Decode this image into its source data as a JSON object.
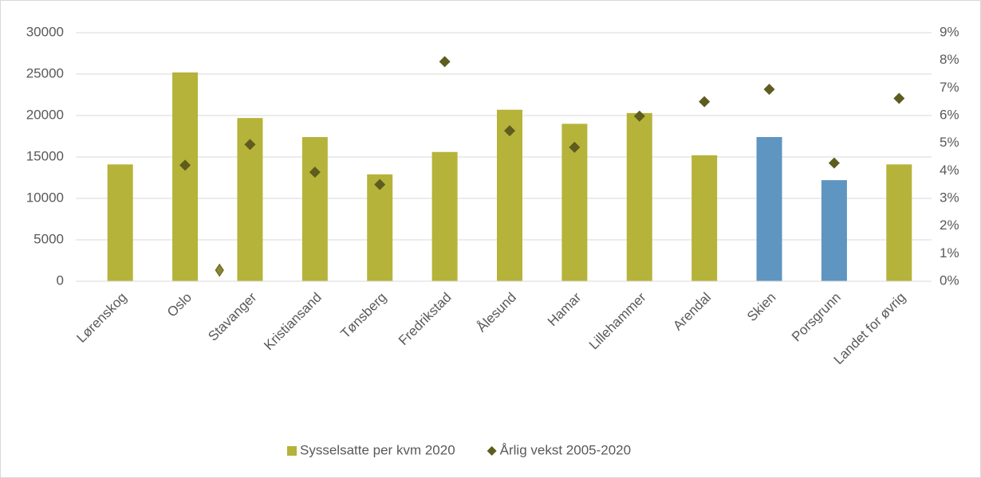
{
  "chart_data": {
    "type": "bar",
    "categories": [
      "Lørenskog",
      "Oslo",
      "Stavanger",
      "Kristiansand",
      "Tønsberg",
      "Fredrikstad",
      "Ålesund",
      "Hamar",
      "Lillehammer",
      "Arendal",
      "Skien",
      "Porsgrunn",
      "Landet for øvrig"
    ],
    "series": [
      {
        "name": "Sysselsatte per kvm 2020",
        "type": "bar",
        "color": "#b5b33a",
        "colors": [
          "#b5b33a",
          "#b5b33a",
          "#b5b33a",
          "#b5b33a",
          "#b5b33a",
          "#b5b33a",
          "#b5b33a",
          "#b5b33a",
          "#b5b33a",
          "#b5b33a",
          "#5f95c1",
          "#5f95c1",
          "#b5b33a"
        ],
        "values": [
          14100,
          25200,
          19700,
          17400,
          12900,
          15600,
          20700,
          19000,
          20300,
          15200,
          17400,
          12200,
          14100
        ]
      },
      {
        "name": "Årlig vekst 2005-2020",
        "type": "scatter",
        "axis": "y2",
        "color": "#5e5c1f",
        "values": [
          null,
          4.2,
          4.95,
          3.95,
          3.5,
          7.95,
          5.45,
          4.85,
          5.98,
          6.5,
          6.95,
          4.28,
          6.62
        ]
      }
    ],
    "extra_points": [
      {
        "x": 1.53,
        "value": 0.4,
        "color": "#8a8730"
      }
    ],
    "ylim": [
      0,
      30000
    ],
    "yticks": [
      0,
      5000,
      10000,
      15000,
      20000,
      25000,
      30000
    ],
    "y2lim": [
      0,
      9
    ],
    "y2ticks": [
      {
        "value": 0,
        "label": "0%"
      },
      {
        "value": 1,
        "label": "1%"
      },
      {
        "value": 2,
        "label": "2%"
      },
      {
        "value": 3,
        "label": "3%"
      },
      {
        "value": 4,
        "label": "4%"
      },
      {
        "value": 5,
        "label": "5%"
      },
      {
        "value": 6,
        "label": "6%"
      },
      {
        "value": 7,
        "label": "7%"
      },
      {
        "value": 8,
        "label": "8%"
      },
      {
        "value": 9,
        "label": "9%"
      }
    ],
    "grid": true,
    "legend": "bottom"
  }
}
